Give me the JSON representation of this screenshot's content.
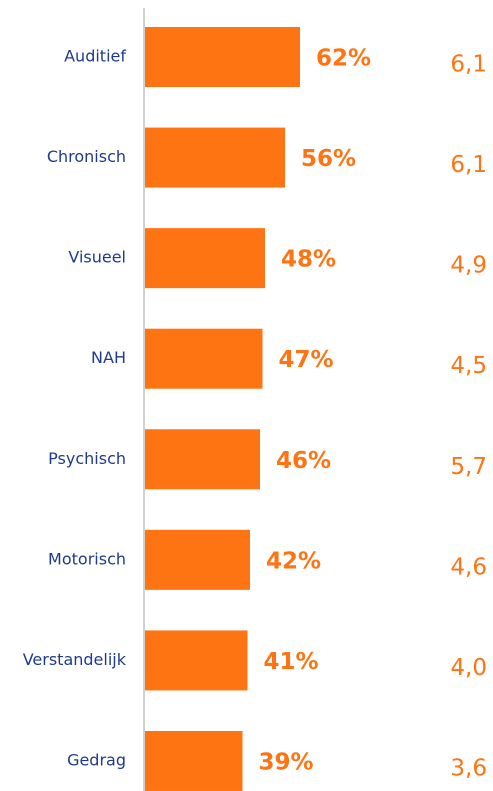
{
  "chart_data": {
    "type": "bar",
    "orientation": "horizontal",
    "categories": [
      "Auditief",
      "Chronisch",
      "Visueel",
      "NAH",
      "Psychisch",
      "Motorisch",
      "Verstandelijk",
      "Gedrag"
    ],
    "values": [
      62,
      56,
      48,
      47,
      46,
      42,
      41,
      39
    ],
    "value_labels": [
      "62%",
      "56%",
      "48%",
      "47%",
      "46%",
      "42%",
      "41%",
      "39%"
    ],
    "scores": [
      "6,1",
      "6,1",
      "4,9",
      "4,5",
      "5,7",
      "4,6",
      "4,0",
      "3,6"
    ],
    "color": "#ff7412",
    "xlim": [
      0,
      100
    ]
  }
}
